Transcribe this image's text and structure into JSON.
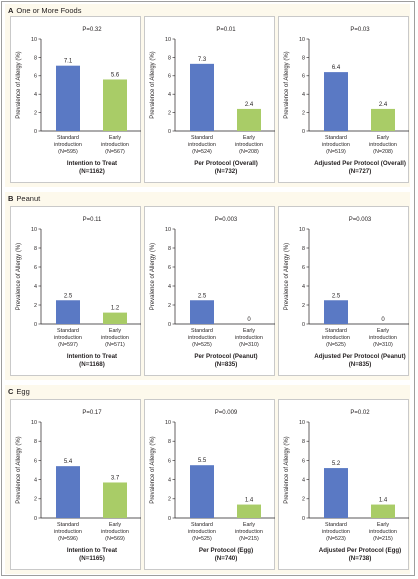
{
  "figure": {
    "colors": {
      "standard": "#5a79c4",
      "early": "#a9cc67",
      "panel_bg": "#fdf9ec"
    },
    "y_axis_label": "Prevalence of Allergy (%)",
    "panels": [
      {
        "letter": "A",
        "title": "One or More Foods"
      },
      {
        "letter": "B",
        "title": "Peanut"
      },
      {
        "letter": "C",
        "title": "Egg"
      }
    ]
  },
  "chart_data": [
    {
      "type": "bar",
      "panel": "A",
      "ylim": [
        0,
        10
      ],
      "yticks": [
        0,
        2,
        4,
        6,
        8,
        10
      ],
      "title": "Intention to Treat",
      "n_total": "(N=1162)",
      "p_value": "P=0.32",
      "categories": [
        {
          "line1": "Standard",
          "line2": "introduction",
          "n": "(N=595)"
        },
        {
          "line1": "Early",
          "line2": "introduction",
          "n": "(N=567)"
        }
      ],
      "values": [
        7.1,
        5.6
      ],
      "value_labels": [
        "7.1",
        "5.6"
      ]
    },
    {
      "type": "bar",
      "panel": "A",
      "ylim": [
        0,
        10
      ],
      "yticks": [
        0,
        2,
        4,
        6,
        8,
        10
      ],
      "title": "Per Protocol (Overall)",
      "n_total": "(N=732)",
      "p_value": "P=0.01",
      "categories": [
        {
          "line1": "Standard",
          "line2": "introduction",
          "n": "(N=524)"
        },
        {
          "line1": "Early",
          "line2": "introduction",
          "n": "(N=208)"
        }
      ],
      "values": [
        7.3,
        2.4
      ],
      "value_labels": [
        "7.3",
        "2.4"
      ]
    },
    {
      "type": "bar",
      "panel": "A",
      "ylim": [
        0,
        10
      ],
      "yticks": [
        0,
        2,
        4,
        6,
        8,
        10
      ],
      "title": "Adjusted Per Protocol (Overall)",
      "n_total": "(N=727)",
      "p_value": "P=0.03",
      "categories": [
        {
          "line1": "Standard",
          "line2": "introduction",
          "n": "(N=519)"
        },
        {
          "line1": "Early",
          "line2": "introduction",
          "n": "(N=208)"
        }
      ],
      "values": [
        6.4,
        2.4
      ],
      "value_labels": [
        "6.4",
        "2.4"
      ]
    },
    {
      "type": "bar",
      "panel": "B",
      "ylim": [
        0,
        10
      ],
      "yticks": [
        0,
        2,
        4,
        6,
        8,
        10
      ],
      "title": "Intention to Treat",
      "n_total": "(N=1168)",
      "p_value": "P=0.11",
      "categories": [
        {
          "line1": "Standard",
          "line2": "introduction",
          "n": "(N=597)"
        },
        {
          "line1": "Early",
          "line2": "introduction",
          "n": "(N=571)"
        }
      ],
      "values": [
        2.5,
        1.2
      ],
      "value_labels": [
        "2.5",
        "1.2"
      ]
    },
    {
      "type": "bar",
      "panel": "B",
      "ylim": [
        0,
        10
      ],
      "yticks": [
        0,
        2,
        4,
        6,
        8,
        10
      ],
      "title": "Per Protocol (Peanut)",
      "n_total": "(N=835)",
      "p_value": "P=0.003",
      "categories": [
        {
          "line1": "Standard",
          "line2": "introduction",
          "n": "(N=525)"
        },
        {
          "line1": "Early",
          "line2": "introduction",
          "n": "(N=310)"
        }
      ],
      "values": [
        2.5,
        0
      ],
      "value_labels": [
        "2.5",
        "0"
      ]
    },
    {
      "type": "bar",
      "panel": "B",
      "ylim": [
        0,
        10
      ],
      "yticks": [
        0,
        2,
        4,
        6,
        8,
        10
      ],
      "title": "Adjusted Per Protocol (Peanut)",
      "n_total": "(N=835)",
      "p_value": "P=0.003",
      "categories": [
        {
          "line1": "Standard",
          "line2": "introduction",
          "n": "(N=525)"
        },
        {
          "line1": "Early",
          "line2": "introduction",
          "n": "(N=310)"
        }
      ],
      "values": [
        2.5,
        0
      ],
      "value_labels": [
        "2.5",
        "0"
      ]
    },
    {
      "type": "bar",
      "panel": "C",
      "ylim": [
        0,
        10
      ],
      "yticks": [
        0,
        2,
        4,
        6,
        8,
        10
      ],
      "title": "Intention to Treat",
      "n_total": "(N=1165)",
      "p_value": "P=0.17",
      "categories": [
        {
          "line1": "Standard",
          "line2": "introduction",
          "n": "(N=596)"
        },
        {
          "line1": "Early",
          "line2": "introduction",
          "n": "(N=569)"
        }
      ],
      "values": [
        5.4,
        3.7
      ],
      "value_labels": [
        "5.4",
        "3.7"
      ]
    },
    {
      "type": "bar",
      "panel": "C",
      "ylim": [
        0,
        10
      ],
      "yticks": [
        0,
        2,
        4,
        6,
        8,
        10
      ],
      "title": "Per Protocol (Egg)",
      "n_total": "(N=740)",
      "p_value": "P=0.009",
      "categories": [
        {
          "line1": "Standard",
          "line2": "introduction",
          "n": "(N=525)"
        },
        {
          "line1": "Early",
          "line2": "introduction",
          "n": "(N=215)"
        }
      ],
      "values": [
        5.5,
        1.4
      ],
      "value_labels": [
        "5.5",
        "1.4"
      ]
    },
    {
      "type": "bar",
      "panel": "C",
      "ylim": [
        0,
        10
      ],
      "yticks": [
        0,
        2,
        4,
        6,
        8,
        10
      ],
      "title": "Adjusted Per Protocol (Egg)",
      "n_total": "(N=738)",
      "p_value": "P=0.02",
      "categories": [
        {
          "line1": "Standard",
          "line2": "introduction",
          "n": "(N=523)"
        },
        {
          "line1": "Early",
          "line2": "introduction",
          "n": "(N=215)"
        }
      ],
      "values": [
        5.2,
        1.4
      ],
      "value_labels": [
        "5.2",
        "1.4"
      ]
    }
  ]
}
